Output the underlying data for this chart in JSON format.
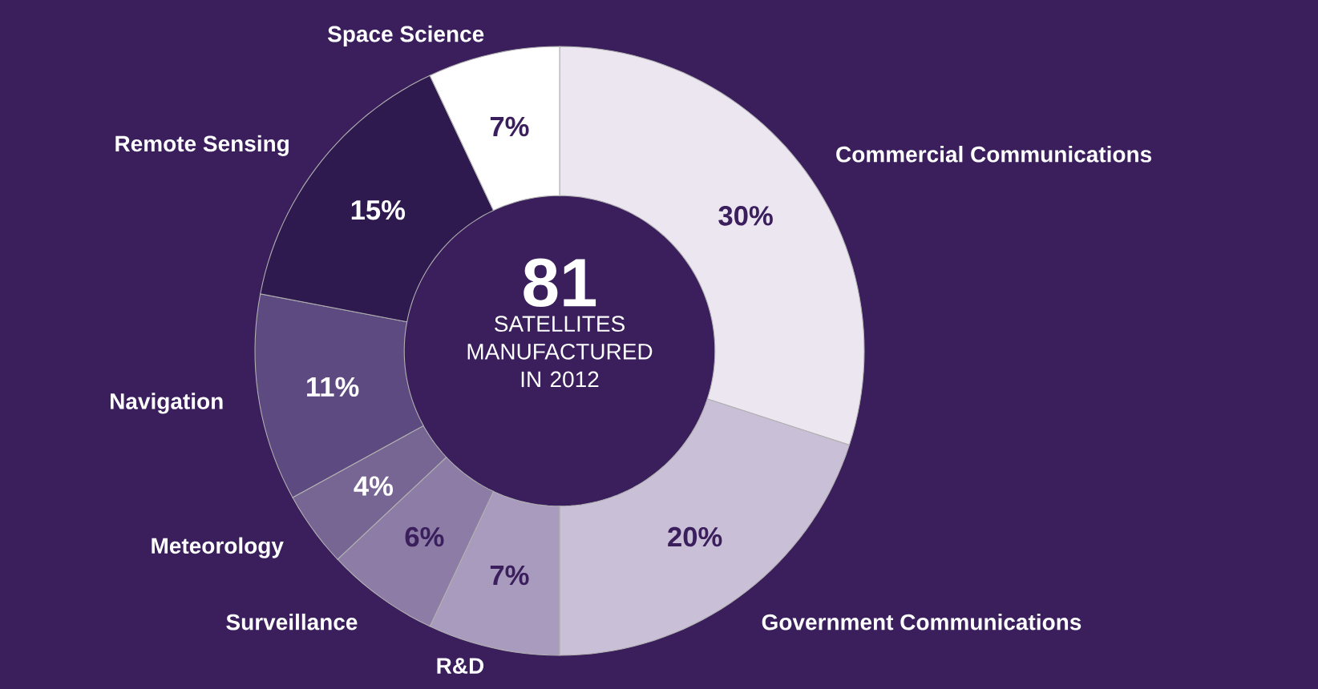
{
  "chart_data": {
    "type": "donut",
    "categories": [
      "Commercial Communications",
      "Government Communications",
      "R&D",
      "Surveillance",
      "Meteorology",
      "Navigation",
      "Remote Sensing",
      "Space Science"
    ],
    "values": [
      30,
      20,
      7,
      6,
      4,
      11,
      15,
      7
    ],
    "colors": [
      "#ebe6f0",
      "#c9bfd6",
      "#a99bbd",
      "#8d7ca6",
      "#776693",
      "#5d4a80",
      "#2e1a4e",
      "#ffffff"
    ],
    "value_labels": [
      "30%",
      "20%",
      "7%",
      "6%",
      "4%",
      "11%",
      "15%",
      "7%"
    ],
    "annotations": [
      "81",
      "SATELLITES MANUFACTURED IN 2012"
    ]
  }
}
